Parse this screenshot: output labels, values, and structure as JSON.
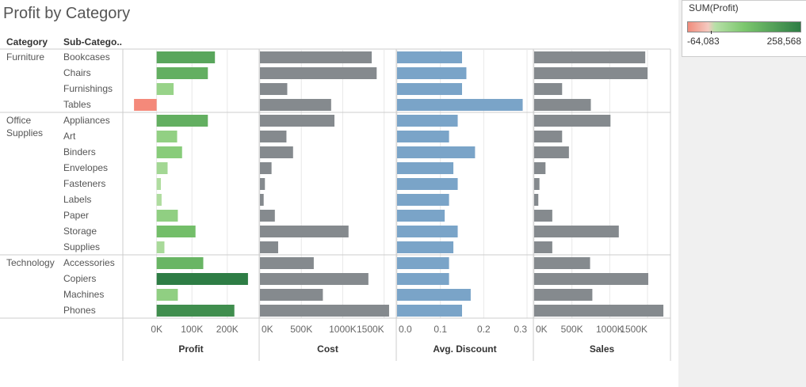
{
  "title": "Profit by Category",
  "header": {
    "category": "Category",
    "subcategory": "Sub-Catego.."
  },
  "legend": {
    "title": "SUM(Profit)",
    "min_label": "-64,083",
    "max_label": "258,568",
    "colors": [
      "#f08c7c",
      "#f4c9c0",
      "#b8e0a8",
      "#7cc76e",
      "#2e7d45"
    ]
  },
  "colors": {
    "cost_bar": "#858a8e",
    "discount_bar": "#7aa4c8",
    "sales_bar": "#858a8e",
    "loss_bar": "#f4897a",
    "grid": "#e8e8e8",
    "divider": "#cccccc",
    "text": "#555555"
  },
  "chart_data": {
    "type": "bar",
    "title": "Profit by Category",
    "rows": [
      {
        "category": "Furniture",
        "subcategory": "Bookcases",
        "profit": 165000,
        "cost": 1350000,
        "discount": 0.15,
        "sales": 1470000
      },
      {
        "category": "",
        "subcategory": "Chairs",
        "profit": 145000,
        "cost": 1410000,
        "discount": 0.16,
        "sales": 1500000
      },
      {
        "category": "",
        "subcategory": "Furnishings",
        "profit": 48000,
        "cost": 330000,
        "discount": 0.15,
        "sales": 370000
      },
      {
        "category": "",
        "subcategory": "Tables",
        "profit": -64083,
        "cost": 860000,
        "discount": 0.29,
        "sales": 750000
      },
      {
        "category": "Office Supplies",
        "subcategory": "Appliances",
        "profit": 145000,
        "cost": 900000,
        "discount": 0.14,
        "sales": 1010000
      },
      {
        "category": "",
        "subcategory": "Art",
        "profit": 58000,
        "cost": 320000,
        "discount": 0.12,
        "sales": 370000
      },
      {
        "category": "",
        "subcategory": "Binders",
        "profit": 72000,
        "cost": 400000,
        "discount": 0.18,
        "sales": 460000
      },
      {
        "category": "",
        "subcategory": "Envelopes",
        "profit": 31000,
        "cost": 140000,
        "discount": 0.13,
        "sales": 150000
      },
      {
        "category": "",
        "subcategory": "Fasteners",
        "profit": 12000,
        "cost": 60000,
        "discount": 0.14,
        "sales": 70000
      },
      {
        "category": "",
        "subcategory": "Labels",
        "profit": 14000,
        "cost": 45000,
        "discount": 0.12,
        "sales": 55000
      },
      {
        "category": "",
        "subcategory": "Paper",
        "profit": 60000,
        "cost": 180000,
        "discount": 0.11,
        "sales": 240000
      },
      {
        "category": "",
        "subcategory": "Storage",
        "profit": 110000,
        "cost": 1070000,
        "discount": 0.14,
        "sales": 1120000
      },
      {
        "category": "",
        "subcategory": "Supplies",
        "profit": 22000,
        "cost": 220000,
        "discount": 0.13,
        "sales": 240000
      },
      {
        "category": "Technology",
        "subcategory": "Accessories",
        "profit": 132000,
        "cost": 650000,
        "discount": 0.12,
        "sales": 740000
      },
      {
        "category": "",
        "subcategory": "Copiers",
        "profit": 258568,
        "cost": 1310000,
        "discount": 0.12,
        "sales": 1510000
      },
      {
        "category": "",
        "subcategory": "Machines",
        "profit": 60000,
        "cost": 760000,
        "discount": 0.17,
        "sales": 770000
      },
      {
        "category": "",
        "subcategory": "Phones",
        "profit": 220000,
        "cost": 1560000,
        "discount": 0.15,
        "sales": 1710000
      }
    ],
    "columns": [
      {
        "key": "profit",
        "label": "Profit",
        "min": -80000,
        "max": 270000,
        "ticks": [
          0,
          100000,
          200000
        ],
        "tick_labels": [
          "0K",
          "100K",
          "200K"
        ]
      },
      {
        "key": "cost",
        "label": "Cost",
        "min": 0,
        "max": 1570000,
        "ticks": [
          0,
          500000,
          1000000,
          1500000
        ],
        "tick_labels": [
          "0K",
          "500K",
          "1000K",
          "1500K"
        ]
      },
      {
        "key": "discount",
        "label": "Avg. Discount",
        "min": 0,
        "max": 0.3,
        "ticks": [
          0,
          0.1,
          0.2,
          0.3
        ],
        "tick_labels": [
          "0.0",
          "0.1",
          "0.2",
          "0.3"
        ]
      },
      {
        "key": "sales",
        "label": "Sales",
        "min": 0,
        "max": 1720000,
        "ticks": [
          0,
          500000,
          1000000,
          1500000
        ],
        "tick_labels": [
          "0K",
          "500K",
          "1000K",
          "1500K"
        ]
      }
    ]
  }
}
